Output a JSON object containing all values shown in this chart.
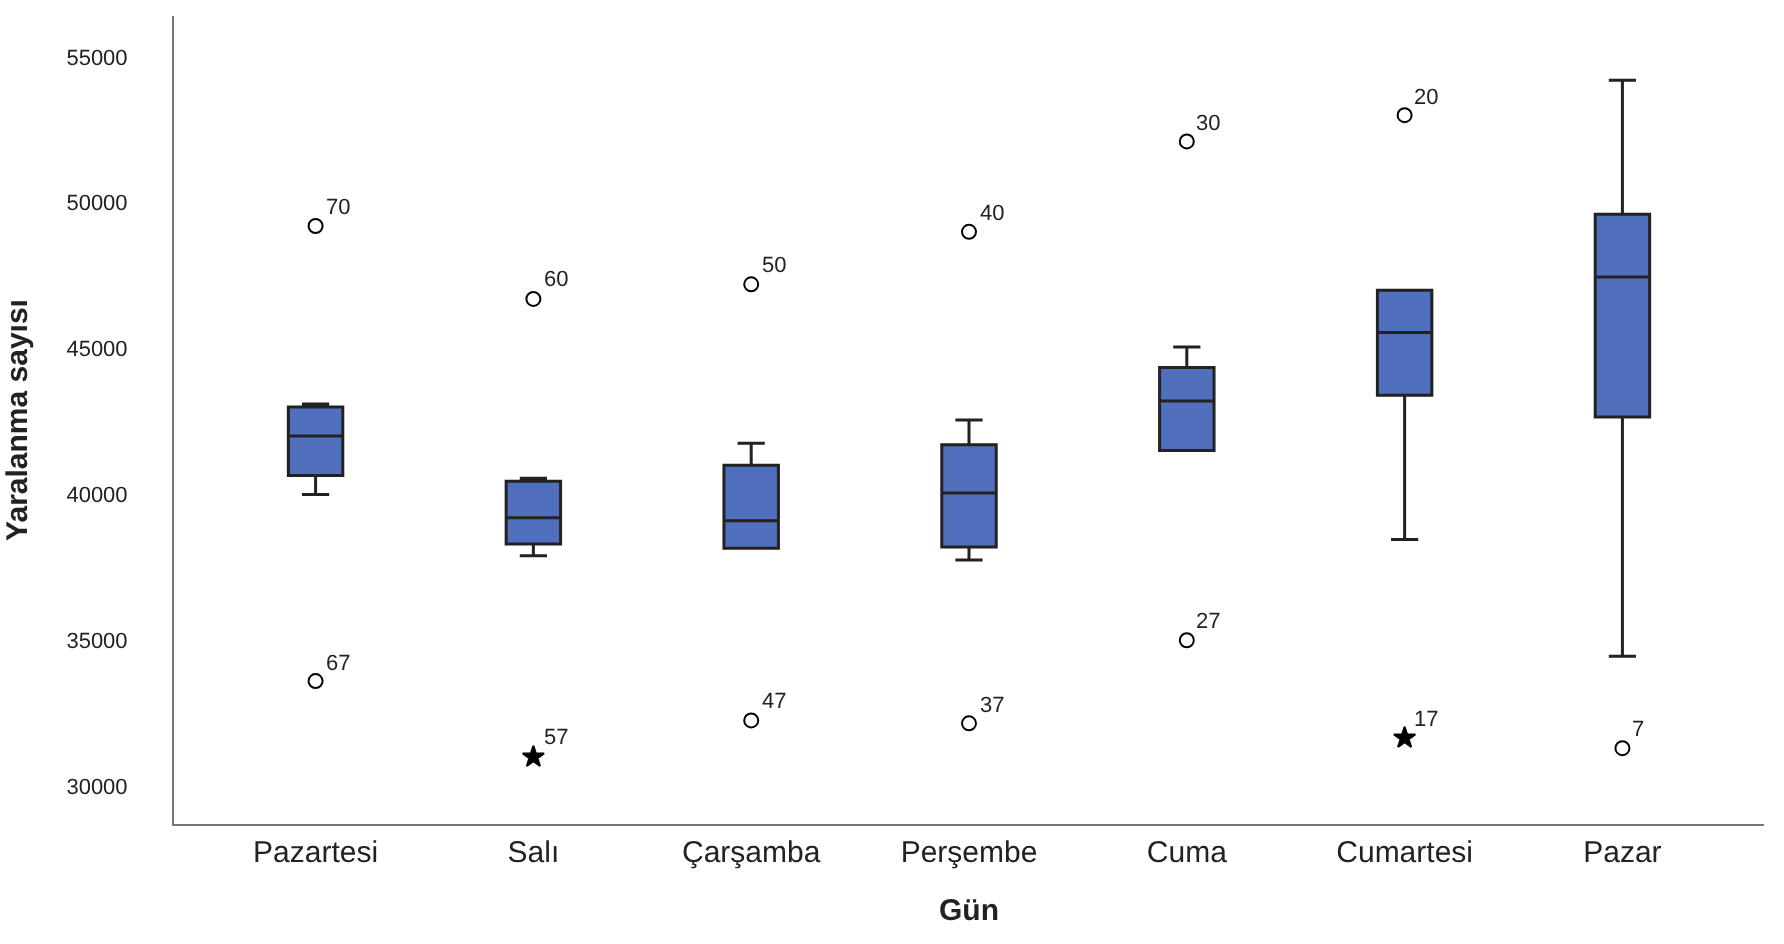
{
  "chart_data": {
    "type": "box",
    "xlabel": "Gün",
    "ylabel": "Yaralanma sayısı",
    "categories": [
      "Pazartesi",
      "Salı",
      "Çarşamba",
      "Perşembe",
      "Cuma",
      "Cumartesi",
      "Pazar"
    ],
    "color": "#5070be",
    "boxes": [
      {
        "low": 40000,
        "q1": 40650,
        "median": 42000,
        "q3": 43000,
        "high": 43100
      },
      {
        "low": 37900,
        "q1": 38300,
        "median": 39200,
        "q3": 40450,
        "high": 40550
      },
      {
        "low": 38150,
        "q1": 38150,
        "median": 39100,
        "q3": 41000,
        "high": 41750
      },
      {
        "low": 37750,
        "q1": 38200,
        "median": 40050,
        "q3": 41700,
        "high": 42550
      },
      {
        "low": 41500,
        "q1": 41500,
        "median": 43200,
        "q3": 44350,
        "high": 45050
      },
      {
        "low": 38450,
        "q1": 43400,
        "median": 45550,
        "q3": 47000,
        "high": 47000
      },
      {
        "low": 34450,
        "q1": 42650,
        "median": 47450,
        "q3": 49600,
        "high": 54200
      }
    ],
    "series": [
      {
        "type": "scatter",
        "marker": "circle",
        "color": "#000000",
        "x": [
          "Pazartesi",
          "Pazartesi",
          "Salı",
          "Çarşamba",
          "Çarşamba",
          "Perşembe",
          "Perşembe",
          "Cuma",
          "Cuma",
          "Cumartesi",
          "Pazar"
        ],
        "values": [
          49200,
          33600,
          46700,
          47200,
          32250,
          49000,
          32150,
          52100,
          35000,
          53000,
          31300
        ]
      },
      {
        "type": "scatter",
        "marker": "star",
        "color": "#000000",
        "x": [
          "Salı",
          "Cumartesi"
        ],
        "values": [
          31000,
          31650
        ]
      }
    ],
    "annotations": [
      {
        "text": "70",
        "x": "Pazartesi",
        "y": 49200
      },
      {
        "text": "67",
        "x": "Pazartesi",
        "y": 33600
      },
      {
        "text": "60",
        "x": "Salı",
        "y": 46700
      },
      {
        "text": "57",
        "x": "Salı",
        "y": 31000
      },
      {
        "text": "50",
        "x": "Çarşamba",
        "y": 47200
      },
      {
        "text": "47",
        "x": "Çarşamba",
        "y": 32250
      },
      {
        "text": "40",
        "x": "Perşembe",
        "y": 49000
      },
      {
        "text": "37",
        "x": "Perşembe",
        "y": 32150
      },
      {
        "text": "30",
        "x": "Cuma",
        "y": 52100
      },
      {
        "text": "27",
        "x": "Cuma",
        "y": 35000
      },
      {
        "text": "20",
        "x": "Cumartesi",
        "y": 53000
      },
      {
        "text": "17",
        "x": "Cumartesi",
        "y": 31650
      },
      {
        "text": "7",
        "x": "Pazar",
        "y": 31300
      }
    ],
    "ylim": [
      28700,
      56400
    ],
    "yticks": [
      30000,
      35000,
      40000,
      45000,
      50000,
      55000
    ]
  }
}
